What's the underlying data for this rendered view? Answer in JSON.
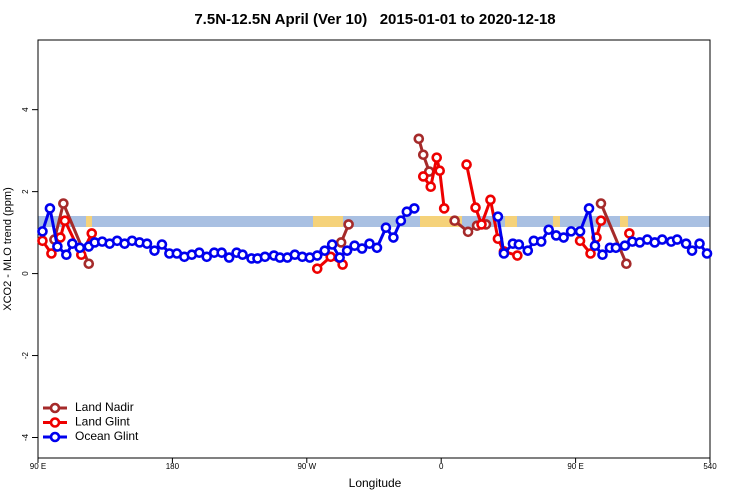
{
  "chart_data": {
    "type": "line",
    "title": "7.5N-12.5N April (Ver 10)   2015-01-01 to 2020-12-18",
    "xlabel": "Longitude",
    "ylabel": "XCO2 - MLO trend (ppm)",
    "xlim": [
      90,
      540
    ],
    "ylim": [
      -4.5,
      5.7
    ],
    "xticks": [
      {
        "value": 90,
        "label": "90 E"
      },
      180,
      {
        "value": 270,
        "label": "90 W"
      },
      {
        "value": 360,
        "label": "0"
      },
      {
        "value": 450,
        "label": "90 E"
      },
      540
    ],
    "yticks": [
      -4,
      -2,
      0,
      2,
      4
    ],
    "legend": "bottom-left",
    "series": [
      {
        "name": "Land Nadir",
        "color": "#a52a2a",
        "x": [
          101,
          107,
          124,
          null,
          293,
          298,
          null,
          345,
          348,
          352,
          null,
          369,
          378,
          384,
          390,
          null,
          467,
          484
        ],
        "values": [
          0.83,
          1.71,
          0.24,
          null,
          0.76,
          1.2,
          null,
          3.29,
          2.9,
          2.49,
          null,
          1.29,
          1.02,
          1.17,
          1.2,
          null,
          1.71,
          0.24
        ]
      },
      {
        "name": "Land Glint",
        "color": "#ee0000",
        "x": [
          93,
          99,
          105,
          108,
          119,
          126,
          null,
          277,
          286,
          294,
          null,
          348,
          353,
          357,
          359,
          362,
          null,
          377,
          383,
          387,
          393,
          398,
          402,
          411,
          null,
          453,
          460,
          464,
          467,
          null,
          486
        ],
        "values": [
          0.8,
          0.49,
          0.88,
          1.29,
          0.46,
          0.98,
          null,
          0.12,
          0.41,
          0.22,
          null,
          2.37,
          2.12,
          2.83,
          2.51,
          1.59,
          null,
          2.66,
          1.61,
          1.2,
          1.8,
          0.85,
          0.54,
          0.44,
          null,
          0.8,
          0.49,
          0.88,
          1.29,
          null,
          0.98
        ]
      },
      {
        "name": "Ocean Glint",
        "color": "#0000ee",
        "x": [
          93,
          98,
          103,
          109,
          113,
          118,
          124,
          128,
          133,
          138,
          143,
          148,
          153,
          158,
          163,
          168,
          173,
          178,
          183,
          188,
          193,
          198,
          203,
          208,
          213,
          218,
          223,
          227,
          233,
          237,
          242,
          248,
          252,
          257,
          262,
          267,
          272,
          277,
          282,
          287,
          292,
          297,
          302,
          307,
          312,
          317,
          323,
          328,
          333,
          337,
          342,
          null,
          398,
          402,
          408,
          412,
          418,
          422,
          427,
          432,
          437,
          442,
          447,
          453,
          459,
          463,
          468,
          473,
          477,
          483,
          488,
          493,
          498,
          503,
          508,
          514,
          518,
          524,
          528,
          533,
          538
        ],
        "values": [
          1.03,
          1.59,
          0.66,
          0.46,
          0.73,
          0.63,
          0.66,
          0.76,
          0.78,
          0.73,
          0.8,
          0.73,
          0.8,
          0.76,
          0.73,
          0.56,
          0.71,
          0.49,
          0.49,
          0.41,
          0.46,
          0.51,
          0.41,
          0.51,
          0.51,
          0.39,
          0.51,
          0.46,
          0.37,
          0.37,
          0.41,
          0.44,
          0.39,
          0.39,
          0.46,
          0.41,
          0.39,
          0.44,
          0.56,
          0.71,
          0.39,
          0.56,
          0.68,
          0.61,
          0.73,
          0.63,
          1.12,
          0.88,
          1.29,
          1.51,
          1.59,
          null,
          1.39,
          0.49,
          0.73,
          0.71,
          0.56,
          0.8,
          0.78,
          1.07,
          0.93,
          0.88,
          1.03,
          1.03,
          1.59,
          0.68,
          0.46,
          0.63,
          0.63,
          0.68,
          0.78,
          0.76,
          0.83,
          0.76,
          0.83,
          0.78,
          0.83,
          0.73,
          0.56,
          0.73,
          0.49
        ]
      }
    ]
  }
}
